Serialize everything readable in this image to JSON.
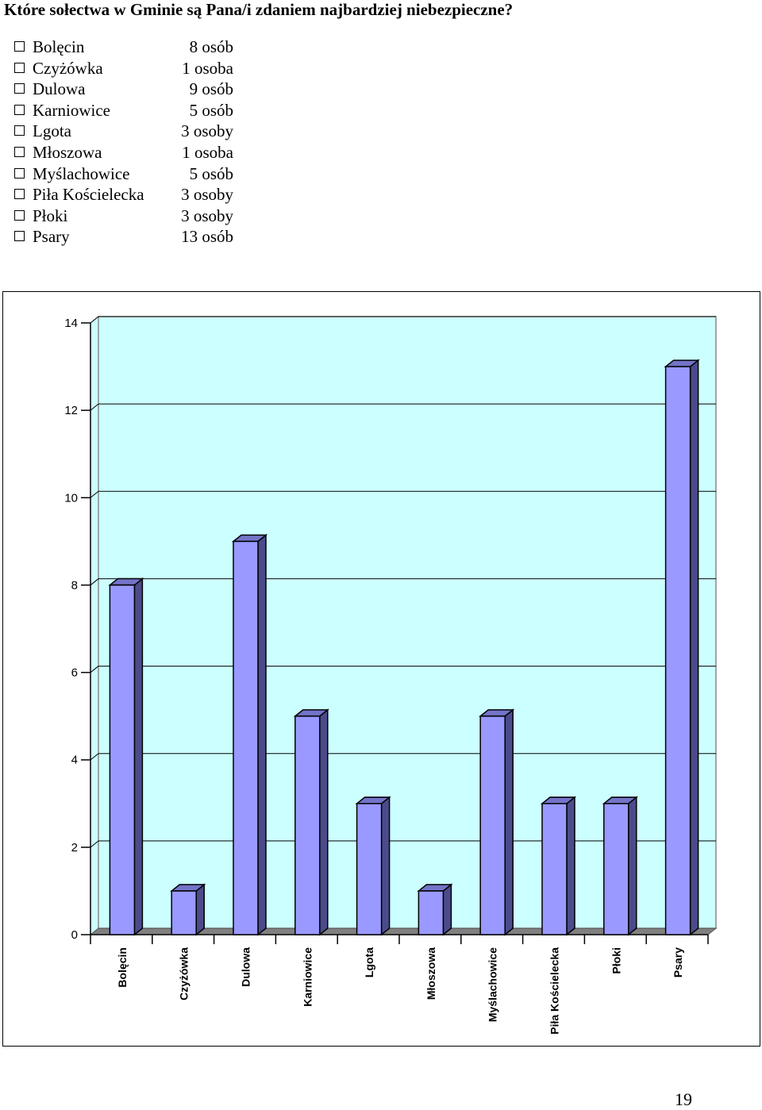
{
  "question": "Które sołectwa w Gminie są Pana/i zdaniem najbardziej niebezpieczne?",
  "answers": [
    {
      "name": "Bolęcin",
      "count": "8 osób"
    },
    {
      "name": "Czyżówka",
      "count": "1 osoba"
    },
    {
      "name": "Dulowa",
      "count": "9 osób"
    },
    {
      "name": "Karniowice",
      "count": "5 osób"
    },
    {
      "name": "Lgota",
      "count": "3 osoby"
    },
    {
      "name": "Młoszowa",
      "count": "1 osoba"
    },
    {
      "name": "Myślachowice",
      "count": "5 osób"
    },
    {
      "name": "Piła Kościelecka",
      "count": "3 osoby"
    },
    {
      "name": "Płoki",
      "count": "3 osoby"
    },
    {
      "name": "Psary",
      "count": "13 osób"
    }
  ],
  "chart_data": {
    "type": "bar",
    "categories": [
      "Bolęcin",
      "Czyżówka",
      "Dulowa",
      "Karniowice",
      "Lgota",
      "Młoszowa",
      "Myślachowice",
      "Piła Kościelecka",
      "Płoki",
      "Psary"
    ],
    "values": [
      8,
      1,
      9,
      5,
      3,
      1,
      5,
      3,
      3,
      13
    ],
    "yticks": [
      "0",
      "2",
      "4",
      "6",
      "8",
      "10",
      "12",
      "14"
    ],
    "ylim": [
      0,
      14
    ],
    "grid": true,
    "style": "3d",
    "colors": {
      "plot_background": "#ccffff",
      "bar_front": "#9999ff",
      "bar_side": "#4b4b8c",
      "bar_top": "#7373c8",
      "floor": "#808080"
    }
  },
  "page_number": "19"
}
